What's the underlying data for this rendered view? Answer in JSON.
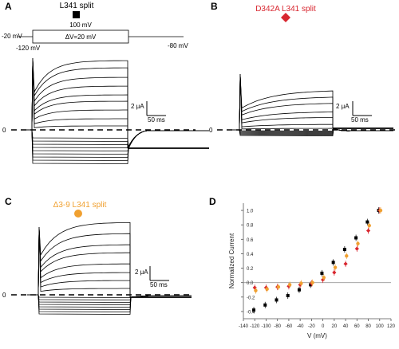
{
  "panels": {
    "A": {
      "letter": "A",
      "title": "L341 split",
      "protocol": {
        "top": "100 mV",
        "hold": "-20 mV",
        "step": "ΔV=20 mV",
        "bottom": "-120 mV",
        "tail": "-80 mV"
      },
      "zero": "0",
      "scale": {
        "y": "2 μA",
        "x": "50 ms"
      },
      "marker_color": "#000000"
    },
    "B": {
      "letter": "B",
      "title": "D342A L341 split",
      "zero": "0",
      "scale": {
        "y": "2 μA",
        "x": "50 ms"
      },
      "marker_color": "#d8262f"
    },
    "C": {
      "letter": "C",
      "title": "Δ3-9 L341 split",
      "zero": "0",
      "scale": {
        "y": "2 μA",
        "x": "50 ms"
      },
      "marker_color": "#f0a030"
    },
    "D": {
      "letter": "D"
    }
  },
  "chart_data": {
    "type": "scatter",
    "xlabel": "V (mV)",
    "ylabel": "Normalized Current",
    "xlim": [
      -140,
      120
    ],
    "ylim": [
      -0.5,
      1.1
    ],
    "xticks": [
      "-140",
      "-120",
      "-100",
      "-80",
      "-60",
      "-40",
      "-20",
      "0",
      "20",
      "40",
      "60",
      "80",
      "100",
      "120"
    ],
    "yticks": [
      "-0.4",
      "-0.2",
      "0.0",
      "0.2",
      "0.4",
      "0.6",
      "0.8",
      "1.0"
    ],
    "series": [
      {
        "color": "#000000",
        "marker": "square",
        "x": [
          -120,
          -100,
          -80,
          -60,
          -40,
          -20,
          0,
          20,
          40,
          60,
          80,
          100
        ],
        "y": [
          -0.38,
          -0.31,
          -0.24,
          -0.18,
          -0.1,
          -0.03,
          0.13,
          0.28,
          0.46,
          0.62,
          0.84,
          1.0
        ]
      },
      {
        "color": "#d8262f",
        "marker": "diamond",
        "x": [
          -120,
          -100,
          -80,
          -60,
          -40,
          -20,
          0,
          20,
          40,
          60,
          80,
          100
        ],
        "y": [
          -0.07,
          -0.07,
          -0.06,
          -0.05,
          -0.03,
          -0.01,
          0.04,
          0.14,
          0.26,
          0.47,
          0.72,
          1.0
        ]
      },
      {
        "color": "#f0a030",
        "marker": "circle",
        "x": [
          -120,
          -100,
          -80,
          -60,
          -40,
          -20,
          0,
          20,
          40,
          60,
          80,
          100
        ],
        "y": [
          -0.11,
          -0.09,
          -0.06,
          -0.03,
          -0.01,
          0.0,
          0.07,
          0.21,
          0.37,
          0.54,
          0.79,
          1.0
        ]
      }
    ]
  }
}
